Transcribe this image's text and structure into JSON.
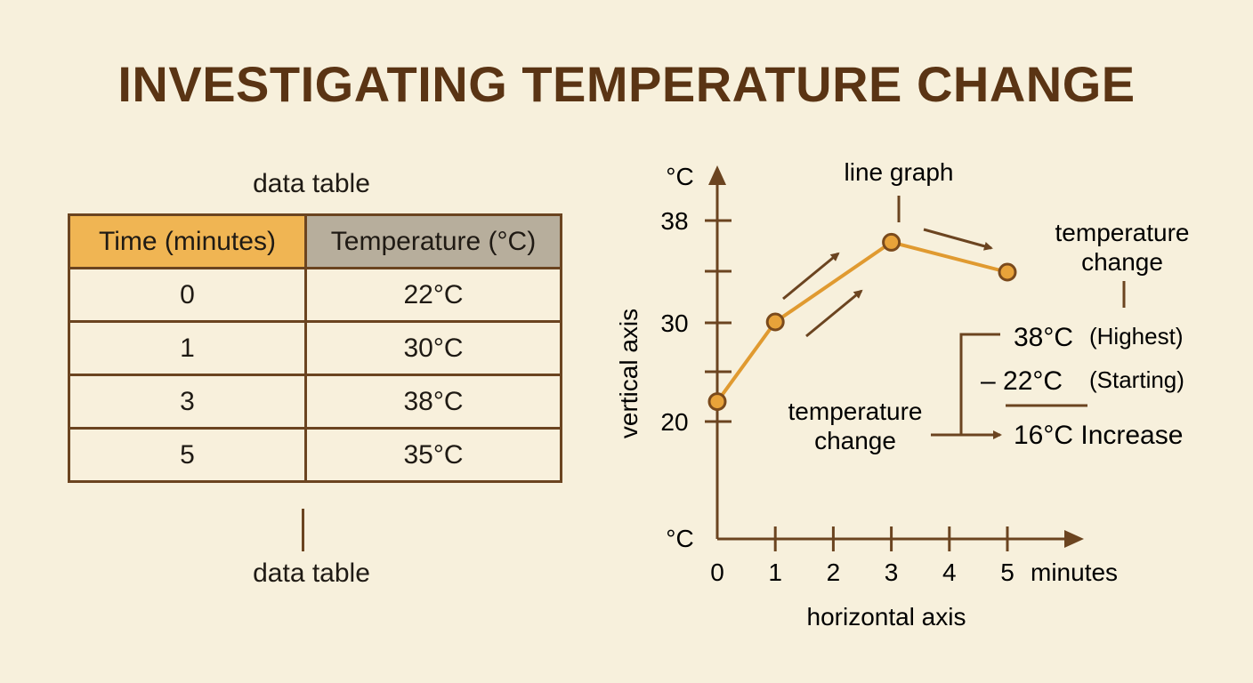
{
  "title": "INVESTIGATING TEMPERATURE CHANGE",
  "table": {
    "caption_top": "data table",
    "caption_bottom": "data table",
    "headers": [
      "Time (minutes)",
      "Temperature (°C)"
    ],
    "rows": [
      [
        "0",
        "22°C"
      ],
      [
        "1",
        "30°C"
      ],
      [
        "3",
        "38°C"
      ],
      [
        "5",
        "35°C"
      ]
    ]
  },
  "annotations": {
    "line_graph": "line graph",
    "temp_change_right_1": "temperature",
    "temp_change_right_2": "change",
    "temp_change_left_1": "temperature",
    "temp_change_left_2": "change",
    "calc_line1_value": "38°C",
    "calc_line1_note": "(Highest)",
    "calc_line2_value": "– 22°C",
    "calc_line2_note": "(Starting)",
    "calc_result": "16°C Increase"
  },
  "colors": {
    "line": "#e09a30",
    "point_fill": "#e8a33a",
    "point_stroke": "#7a4a1c",
    "axis": "#6b4420",
    "title": "#5a3414"
  },
  "chart_data": {
    "type": "line",
    "x": [
      0,
      1,
      3,
      5
    ],
    "y": [
      22,
      30,
      38,
      35
    ],
    "xlabel": "horizontal axis",
    "ylabel": "vertical axis",
    "x_unit_label": "minutes",
    "y_unit_label_top": "°C",
    "y_unit_label_bottom": "°C",
    "x_ticks": [
      "0",
      "1",
      "2",
      "3",
      "4",
      "5"
    ],
    "y_ticks": [
      "20",
      "30",
      "38"
    ],
    "grid": false
  }
}
